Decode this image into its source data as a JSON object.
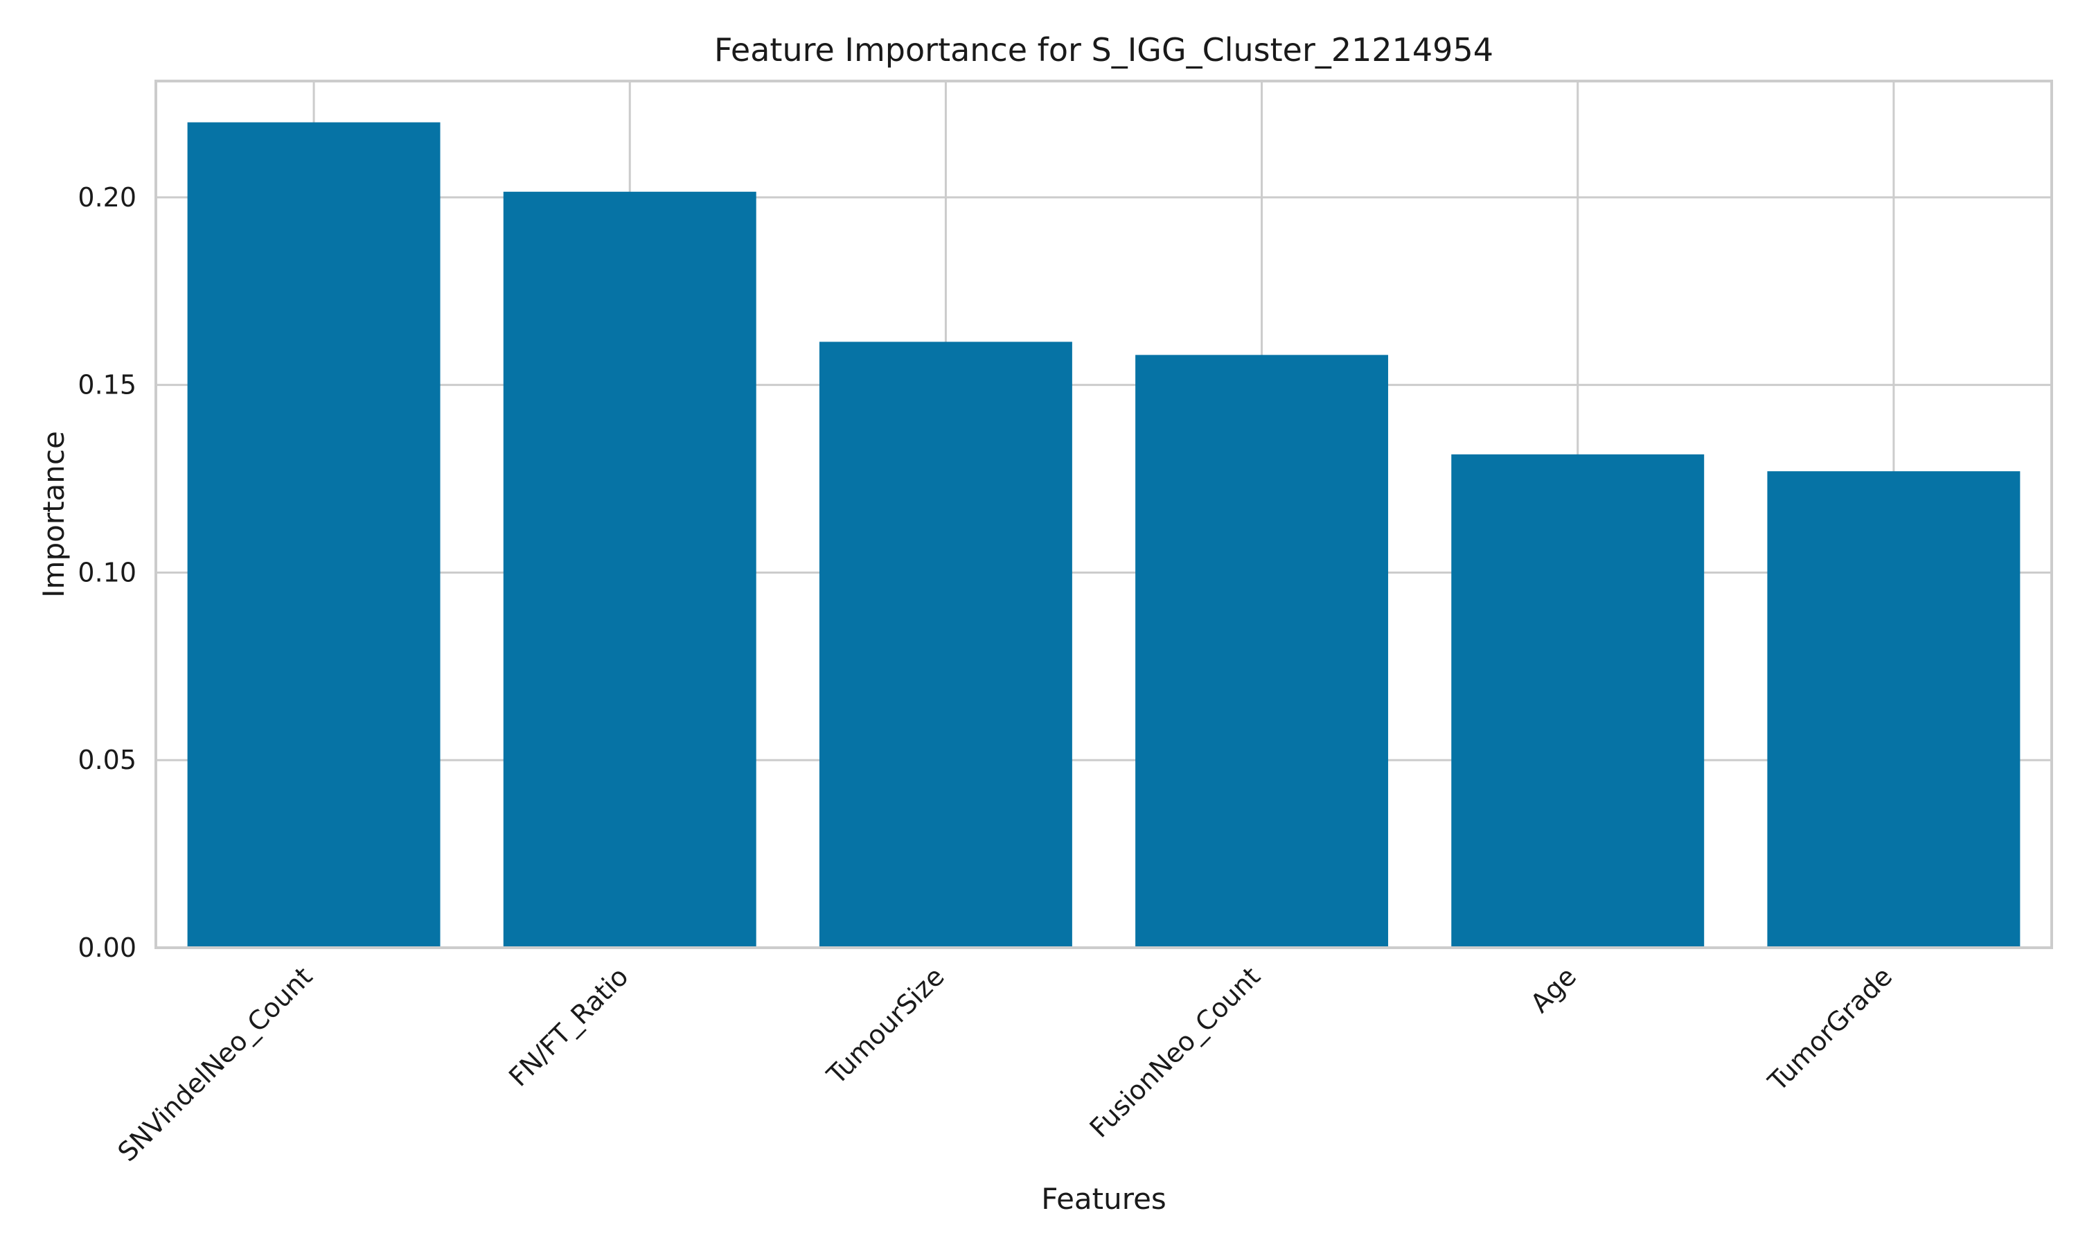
{
  "chart_data": {
    "type": "bar",
    "title": "Feature Importance for S_IGG_Cluster_21214954",
    "xlabel": "Features",
    "ylabel": "Importance",
    "categories": [
      "SNVindelNeo_Count",
      "FN/FT_Ratio",
      "TumourSize",
      "FusionNeo_Count",
      "Age",
      "TumorGrade"
    ],
    "values": [
      0.22,
      0.2015,
      0.1615,
      0.158,
      0.1315,
      0.127
    ],
    "ylim": [
      0,
      0.231
    ],
    "yticks": [
      0.0,
      0.05,
      0.1,
      0.15,
      0.2
    ],
    "ytick_labels": [
      "0.00",
      "0.05",
      "0.10",
      "0.15",
      "0.20"
    ],
    "grid": true,
    "bar_color": "#0673a5",
    "grid_color": "#cccccc"
  }
}
